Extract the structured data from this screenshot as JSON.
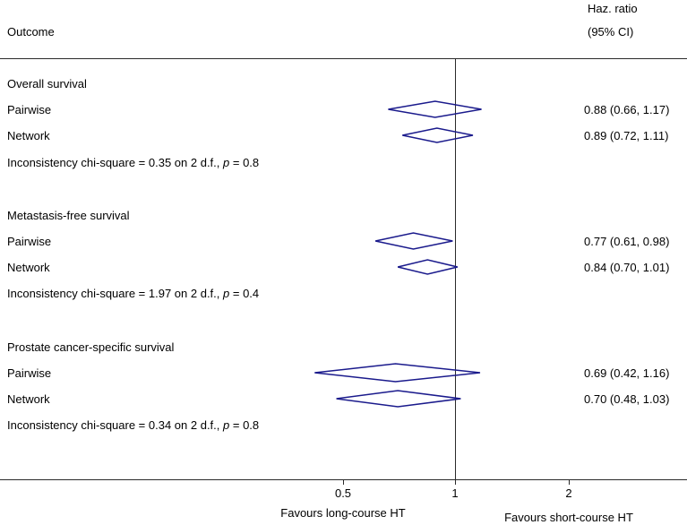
{
  "header": {
    "outcome_label": "Outcome",
    "hr_label_line1": "Haz. ratio",
    "hr_label_line2": "(95% CI)"
  },
  "colors": {
    "diamond": "#1a1a8c",
    "axis": "#2a2a2a",
    "text": "#000000"
  },
  "chart_data": {
    "type": "forest",
    "scale": "log",
    "ref_line": 1,
    "xlim": [
      0.3,
      3
    ],
    "axis": {
      "ticks": [
        0.5,
        1,
        2
      ],
      "tick_labels": [
        "0.5",
        "1",
        "2"
      ],
      "left_label": "Favours long-course HT",
      "right_label": "Favours short-course HT"
    },
    "groups": [
      {
        "title": "Overall survival",
        "rows": [
          {
            "label": "Pairwise",
            "hr": 0.88,
            "lo": 0.66,
            "hi": 1.17,
            "hr_text": "0.88 (0.66, 1.17)"
          },
          {
            "label": "Network",
            "hr": 0.89,
            "lo": 0.72,
            "hi": 1.11,
            "hr_text": "0.89 (0.72, 1.11)"
          }
        ],
        "note_main": "Inconsistency chi-square = 0.35 on 2 d.f., ",
        "note_p": "p",
        "note_tail": " = 0.8"
      },
      {
        "title": "Metastasis-free survival",
        "rows": [
          {
            "label": "Pairwise",
            "hr": 0.77,
            "lo": 0.61,
            "hi": 0.98,
            "hr_text": "0.77 (0.61, 0.98)"
          },
          {
            "label": "Network",
            "hr": 0.84,
            "lo": 0.7,
            "hi": 1.01,
            "hr_text": "0.84 (0.70, 1.01)"
          }
        ],
        "note_main": "Inconsistency chi-square = 1.97 on 2 d.f., ",
        "note_p": "p",
        "note_tail": " = 0.4"
      },
      {
        "title": "Prostate cancer-specific survival",
        "rows": [
          {
            "label": "Pairwise",
            "hr": 0.69,
            "lo": 0.42,
            "hi": 1.16,
            "hr_text": "0.69 (0.42, 1.16)"
          },
          {
            "label": "Network",
            "hr": 0.7,
            "lo": 0.48,
            "hi": 1.03,
            "hr_text": "0.70 (0.48, 1.03)"
          }
        ],
        "note_main": "Inconsistency chi-square = 0.34 on 2 d.f., ",
        "note_p": "p",
        "note_tail": " = 0.8"
      }
    ]
  }
}
